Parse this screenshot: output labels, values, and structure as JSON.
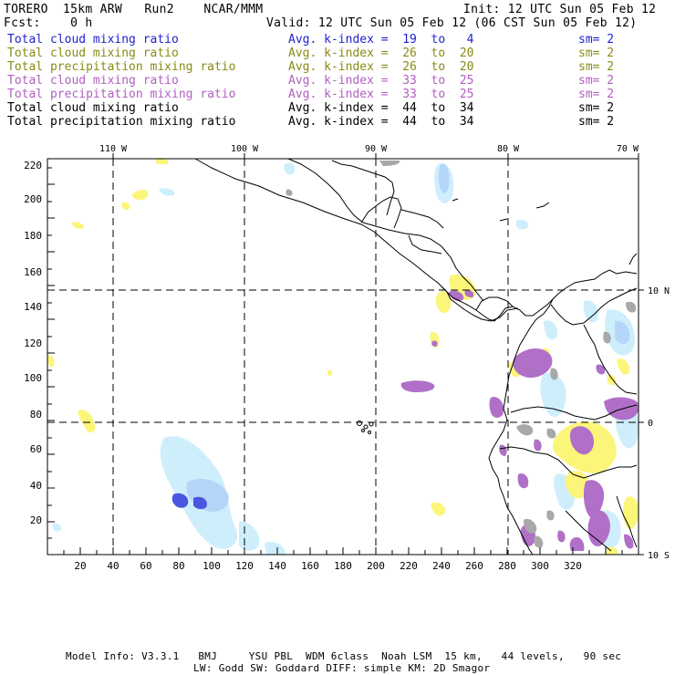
{
  "header": {
    "model": "TORERO  15km ARW   Run2    NCAR/MMM",
    "init": "Init: 12 UTC Sun 05 Feb 12",
    "fcst": "Fcst:    0 h",
    "valid": "Valid: 12 UTC Sun 05 Feb 12 (06 CST Sun 05 Feb 12)"
  },
  "legend": [
    {
      "field": "Total cloud mixing ratio",
      "index": "Avg. k-index =  19  to   4",
      "sm": "sm= 2",
      "color": "#1f1fcf"
    },
    {
      "field": "Total cloud mixing ratio",
      "index": "Avg. k-index =  26  to  20",
      "sm": "sm= 2",
      "color": "#8a8a16"
    },
    {
      "field": "Total precipitation mixing ratio",
      "index": "Avg. k-index =  26  to  20",
      "sm": "sm= 2",
      "color": "#8a8a16"
    },
    {
      "field": "Total cloud mixing ratio",
      "index": "Avg. k-index =  33  to  25",
      "sm": "sm= 2",
      "color": "#b060c0"
    },
    {
      "field": "Total precipitation mixing ratio",
      "index": "Avg. k-index =  33  to  25",
      "sm": "sm= 2",
      "color": "#b060c0"
    },
    {
      "field": "Total cloud mixing ratio",
      "index": "Avg. k-index =  44  to  34",
      "sm": "sm= 2",
      "color": "#000000"
    },
    {
      "field": "Total precipitation mixing ratio",
      "index": "Avg. k-index =  44  to  34",
      "sm": "sm= 2",
      "color": "#000000"
    }
  ],
  "axes": {
    "lon_labels": [
      "110 W",
      "100 W",
      "90 W",
      "80 W",
      "70 W"
    ],
    "lat_labels": [
      "10 N",
      "0",
      "10 S"
    ],
    "x_ticks": [
      "20",
      "40",
      "60",
      "80",
      "100",
      "120",
      "140",
      "160",
      "180",
      "200",
      "220",
      "240",
      "260",
      "280",
      "300",
      "320"
    ],
    "y_ticks": [
      "220",
      "200",
      "180",
      "160",
      "140",
      "120",
      "100",
      "80",
      "60",
      "40",
      "20"
    ]
  },
  "footer": {
    "line1": "Model Info: V3.3.1   BMJ     YSU PBL  WDM 6class  Noah LSM  15 km,   44 levels,   90 sec",
    "line2": "LW: Godd SW: Goddard DIFF: simple KM: 2D Smagor"
  },
  "colors": {
    "blue_light": "#cfeefc",
    "blue_mid": "#b4d6f8",
    "blue_dark": "#4a55e0",
    "yellow": "#fbf57a",
    "purple": "#b070c8",
    "gray": "#a8a8a8"
  }
}
